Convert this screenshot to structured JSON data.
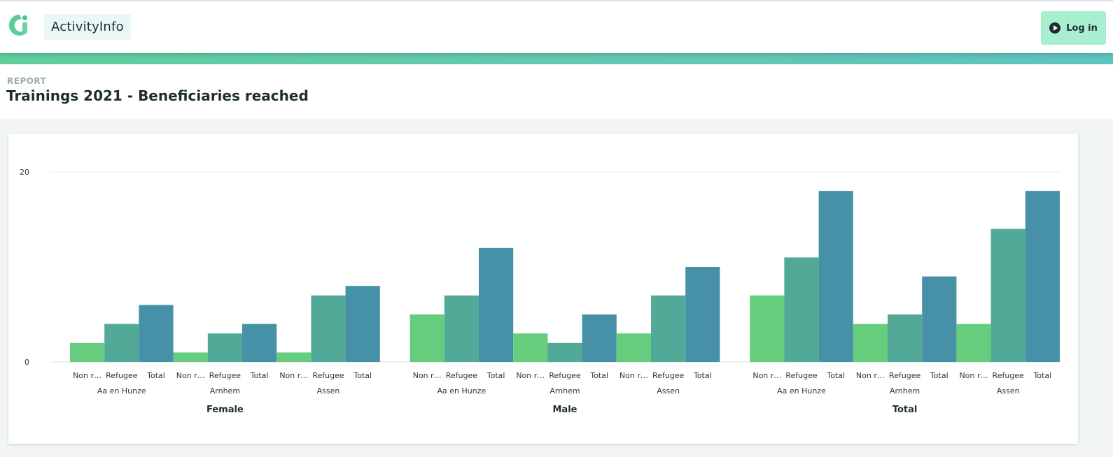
{
  "app": {
    "brand": "ActivityInfo",
    "login_label": "Log in"
  },
  "icons": {
    "logo": "activityinfo-logo-icon",
    "login": "play-circle-icon"
  },
  "report": {
    "eyebrow": "REPORT",
    "title": "Trainings 2021 - Beneficiaries reached"
  },
  "colors": {
    "series": [
      "#66cc7e",
      "#52a998",
      "#4791a8"
    ],
    "strip": "#60c8b3",
    "login_bg": "#a8efcf"
  },
  "chart_data": {
    "type": "bar",
    "ylim": [
      0,
      20
    ],
    "yticks": [
      0,
      20
    ],
    "grid": true,
    "legend": "none",
    "series_names": [
      "Non r…",
      "Refugee",
      "Total"
    ],
    "groups": [
      {
        "name": "Female",
        "locations": [
          {
            "name": "Aa en Hunze",
            "values": [
              2,
              4,
              6
            ]
          },
          {
            "name": "Arnhem",
            "values": [
              1,
              3,
              4
            ]
          },
          {
            "name": "Assen",
            "values": [
              1,
              7,
              8
            ]
          }
        ]
      },
      {
        "name": "Male",
        "locations": [
          {
            "name": "Aa en Hunze",
            "values": [
              5,
              7,
              12
            ]
          },
          {
            "name": "Arnhem",
            "values": [
              3,
              2,
              5
            ]
          },
          {
            "name": "Assen",
            "values": [
              3,
              7,
              10
            ]
          }
        ]
      },
      {
        "name": "Total",
        "locations": [
          {
            "name": "Aa en Hunze",
            "values": [
              7,
              11,
              18
            ]
          },
          {
            "name": "Arnhem",
            "values": [
              4,
              5,
              9
            ]
          },
          {
            "name": "Assen",
            "values": [
              4,
              14,
              18
            ]
          }
        ]
      }
    ]
  }
}
